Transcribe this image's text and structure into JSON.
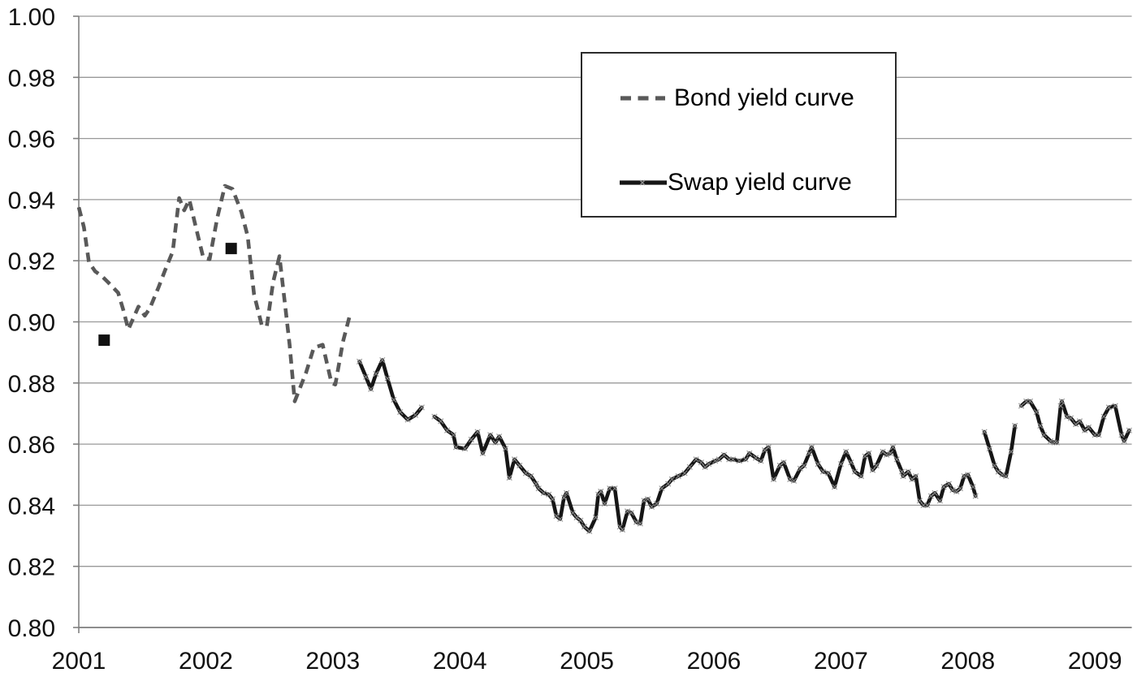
{
  "colors": {
    "background": "#ffffff",
    "grid": "#999999",
    "axis": "#808080",
    "text": "#111111",
    "bond_line": "#595959",
    "swap_line": "#161616",
    "swap_marker": "#909090",
    "square_marker": "#111111",
    "legend_border": "#2b2b2b"
  },
  "chart_data": {
    "type": "line",
    "title": "",
    "xlabel": "",
    "ylabel": "",
    "x_axis": {
      "tick_labels": [
        "2001",
        "2002",
        "2003",
        "2004",
        "2005",
        "2006",
        "2007",
        "2008",
        "2009"
      ],
      "tick_values": [
        2001,
        2002,
        2003,
        2004,
        2005,
        2006,
        2007,
        2008,
        2009
      ],
      "range": [
        2001,
        2009.29
      ]
    },
    "y_axis": {
      "tick_labels": [
        "1.00",
        "0.98",
        "0.96",
        "0.94",
        "0.92",
        "0.90",
        "0.88",
        "0.86",
        "0.84",
        "0.82",
        "0.80"
      ],
      "tick_values": [
        1.0,
        0.98,
        0.96,
        0.94,
        0.92,
        0.9,
        0.88,
        0.86,
        0.84,
        0.82,
        0.8
      ],
      "range": [
        0.8,
        1.0
      ],
      "tick_step": 0.02
    },
    "grid": "horizontal",
    "legend": {
      "position": "top-right",
      "items": [
        {
          "label": "Bond yield curve",
          "style": "dashed",
          "color": "#595959"
        },
        {
          "label": "Swap yield curve",
          "style": "solid-with-x-markers",
          "color": "#161616"
        }
      ]
    },
    "series": [
      {
        "name": "Bond yield curve",
        "style": "dashed",
        "color": "#595959",
        "segments": [
          [
            [
              2001.0,
              0.9375
            ],
            [
              2001.04,
              0.931
            ],
            [
              2001.08,
              0.9195
            ],
            [
              2001.13,
              0.9165
            ],
            [
              2001.18,
              0.915
            ],
            [
              2001.23,
              0.913
            ],
            [
              2001.31,
              0.9095
            ],
            [
              2001.35,
              0.904
            ],
            [
              2001.39,
              0.8975
            ],
            [
              2001.47,
              0.905
            ],
            [
              2001.52,
              0.902
            ],
            [
              2001.56,
              0.9045
            ],
            [
              2001.63,
              0.9115
            ],
            [
              2001.69,
              0.918
            ],
            [
              2001.74,
              0.923
            ],
            [
              2001.79,
              0.9405
            ],
            [
              2001.83,
              0.9365
            ],
            [
              2001.87,
              0.94
            ],
            [
              2001.93,
              0.9295
            ],
            [
              2001.98,
              0.921
            ],
            [
              2002.03,
              0.9205
            ],
            [
              2002.09,
              0.934
            ],
            [
              2002.15,
              0.9445
            ],
            [
              2002.21,
              0.9435
            ],
            [
              2002.28,
              0.936
            ],
            [
              2002.33,
              0.928
            ],
            [
              2002.38,
              0.909
            ],
            [
              2002.44,
              0.899
            ],
            [
              2002.48,
              0.8985
            ],
            [
              2002.53,
              0.913
            ],
            [
              2002.58,
              0.9215
            ],
            [
              2002.63,
              0.9035
            ],
            [
              2002.66,
              0.8925
            ],
            [
              2002.7,
              0.874
            ],
            [
              2002.79,
              0.8835
            ],
            [
              2002.85,
              0.8915
            ],
            [
              2002.92,
              0.8925
            ],
            [
              2002.99,
              0.88
            ],
            [
              2003.02,
              0.8795
            ],
            [
              2003.08,
              0.8935
            ],
            [
              2003.13,
              0.9015
            ]
          ]
        ]
      },
      {
        "name": "Swap yield curve",
        "style": "solid",
        "marker": "x",
        "color": "#161616",
        "marker_color": "#909090",
        "segments": [
          [
            [
              2003.21,
              0.887
            ],
            [
              2003.26,
              0.882
            ],
            [
              2003.3,
              0.878
            ],
            [
              2003.34,
              0.883
            ],
            [
              2003.39,
              0.8875
            ],
            [
              2003.43,
              0.8815
            ],
            [
              2003.48,
              0.8745
            ],
            [
              2003.53,
              0.8705
            ],
            [
              2003.59,
              0.868
            ],
            [
              2003.65,
              0.8695
            ],
            [
              2003.7,
              0.872
            ]
          ],
          [
            [
              2003.8,
              0.869
            ],
            [
              2003.85,
              0.8675
            ],
            [
              2003.9,
              0.8645
            ],
            [
              2003.95,
              0.863
            ],
            [
              2003.97,
              0.859
            ],
            [
              2004.04,
              0.8585
            ],
            [
              2004.09,
              0.8615
            ],
            [
              2004.14,
              0.864
            ],
            [
              2004.18,
              0.857
            ],
            [
              2004.24,
              0.863
            ],
            [
              2004.28,
              0.8605
            ],
            [
              2004.31,
              0.8625
            ],
            [
              2004.36,
              0.8585
            ],
            [
              2004.39,
              0.849
            ],
            [
              2004.43,
              0.855
            ],
            [
              2004.47,
              0.853
            ],
            [
              2004.52,
              0.8505
            ],
            [
              2004.56,
              0.8495
            ],
            [
              2004.6,
              0.847
            ],
            [
              2004.62,
              0.8455
            ],
            [
              2004.66,
              0.844
            ],
            [
              2004.7,
              0.8435
            ],
            [
              2004.73,
              0.842
            ],
            [
              2004.76,
              0.8365
            ],
            [
              2004.79,
              0.8355
            ],
            [
              2004.82,
              0.8425
            ],
            [
              2004.84,
              0.844
            ],
            [
              2004.89,
              0.8375
            ],
            [
              2004.92,
              0.836
            ],
            [
              2004.95,
              0.835
            ],
            [
              2004.98,
              0.833
            ],
            [
              2005.02,
              0.8315
            ],
            [
              2005.07,
              0.836
            ],
            [
              2005.09,
              0.8435
            ],
            [
              2005.11,
              0.8445
            ],
            [
              2005.14,
              0.8405
            ],
            [
              2005.18,
              0.8455
            ],
            [
              2005.22,
              0.8455
            ],
            [
              2005.26,
              0.833
            ],
            [
              2005.28,
              0.832
            ],
            [
              2005.32,
              0.838
            ],
            [
              2005.35,
              0.8375
            ],
            [
              2005.39,
              0.8345
            ],
            [
              2005.42,
              0.834
            ],
            [
              2005.45,
              0.8415
            ],
            [
              2005.48,
              0.842
            ],
            [
              2005.51,
              0.8395
            ],
            [
              2005.55,
              0.8405
            ],
            [
              2005.59,
              0.8455
            ],
            [
              2005.64,
              0.847
            ],
            [
              2005.67,
              0.8485
            ],
            [
              2005.72,
              0.8495
            ],
            [
              2005.77,
              0.8505
            ],
            [
              2005.81,
              0.8525
            ],
            [
              2005.86,
              0.855
            ],
            [
              2005.9,
              0.854
            ],
            [
              2005.93,
              0.8525
            ],
            [
              2005.96,
              0.8535
            ],
            [
              2006.01,
              0.8545
            ],
            [
              2006.04,
              0.855
            ],
            [
              2006.08,
              0.8565
            ],
            [
              2006.12,
              0.855
            ],
            [
              2006.15,
              0.855
            ],
            [
              2006.2,
              0.8545
            ],
            [
              2006.25,
              0.855
            ],
            [
              2006.28,
              0.857
            ],
            [
              2006.33,
              0.8555
            ],
            [
              2006.37,
              0.8545
            ],
            [
              2006.4,
              0.858
            ],
            [
              2006.43,
              0.859
            ],
            [
              2006.47,
              0.8485
            ],
            [
              2006.52,
              0.853
            ],
            [
              2006.55,
              0.854
            ],
            [
              2006.6,
              0.8485
            ],
            [
              2006.63,
              0.848
            ],
            [
              2006.68,
              0.852
            ],
            [
              2006.71,
              0.853
            ],
            [
              2006.75,
              0.857
            ],
            [
              2006.77,
              0.859
            ],
            [
              2006.82,
              0.8535
            ],
            [
              2006.86,
              0.851
            ],
            [
              2006.9,
              0.8505
            ],
            [
              2006.95,
              0.846
            ],
            [
              2007.0,
              0.8535
            ],
            [
              2007.04,
              0.8575
            ],
            [
              2007.08,
              0.854
            ],
            [
              2007.11,
              0.851
            ],
            [
              2007.16,
              0.8495
            ],
            [
              2007.19,
              0.856
            ],
            [
              2007.22,
              0.857
            ],
            [
              2007.25,
              0.8515
            ],
            [
              2007.28,
              0.853
            ],
            [
              2007.33,
              0.8575
            ],
            [
              2007.36,
              0.8565
            ],
            [
              2007.39,
              0.857
            ],
            [
              2007.41,
              0.859
            ],
            [
              2007.44,
              0.855
            ],
            [
              2007.48,
              0.851
            ],
            [
              2007.49,
              0.8495
            ],
            [
              2007.53,
              0.851
            ],
            [
              2007.56,
              0.8485
            ],
            [
              2007.59,
              0.8495
            ],
            [
              2007.62,
              0.8415
            ],
            [
              2007.65,
              0.84
            ],
            [
              2007.68,
              0.84
            ],
            [
              2007.71,
              0.843
            ],
            [
              2007.74,
              0.844
            ],
            [
              2007.78,
              0.8415
            ],
            [
              2007.81,
              0.846
            ],
            [
              2007.85,
              0.847
            ],
            [
              2007.88,
              0.845
            ],
            [
              2007.91,
              0.8445
            ],
            [
              2007.94,
              0.8455
            ],
            [
              2007.97,
              0.8495
            ],
            [
              2008.0,
              0.85
            ],
            [
              2008.04,
              0.846
            ],
            [
              2008.06,
              0.843
            ]
          ],
          [
            [
              2008.13,
              0.864
            ],
            [
              2008.17,
              0.8585
            ],
            [
              2008.21,
              0.853
            ],
            [
              2008.24,
              0.851
            ],
            [
              2008.27,
              0.85
            ],
            [
              2008.3,
              0.8495
            ],
            [
              2008.34,
              0.8575
            ],
            [
              2008.37,
              0.866
            ]
          ],
          [
            [
              2008.42,
              0.8725
            ],
            [
              2008.46,
              0.874
            ],
            [
              2008.49,
              0.874
            ],
            [
              2008.54,
              0.8705
            ],
            [
              2008.57,
              0.866
            ],
            [
              2008.6,
              0.863
            ],
            [
              2008.65,
              0.861
            ],
            [
              2008.68,
              0.8605
            ],
            [
              2008.7,
              0.8605
            ],
            [
              2008.73,
              0.8725
            ],
            [
              2008.74,
              0.874
            ],
            [
              2008.78,
              0.869
            ],
            [
              2008.81,
              0.8685
            ],
            [
              2008.85,
              0.8665
            ],
            [
              2008.88,
              0.8675
            ],
            [
              2008.92,
              0.8645
            ],
            [
              2008.95,
              0.8655
            ],
            [
              2009.0,
              0.863
            ],
            [
              2009.03,
              0.863
            ],
            [
              2009.07,
              0.869
            ],
            [
              2009.11,
              0.872
            ],
            [
              2009.16,
              0.8725
            ],
            [
              2009.21,
              0.863
            ],
            [
              2009.23,
              0.861
            ],
            [
              2009.27,
              0.8645
            ]
          ]
        ]
      }
    ],
    "isolated_points": {
      "series": "Swap yield curve",
      "marker": "square",
      "color": "#111111",
      "points": [
        [
          2001.2,
          0.894
        ],
        [
          2002.2,
          0.924
        ]
      ]
    }
  },
  "layout_meta": {
    "note": "horizontal gridlines every 0.02; no chart title; legend boxed top-right; solid series has small x point markers and three data gaps (mid-2003, early-2008, mid-2008)"
  }
}
